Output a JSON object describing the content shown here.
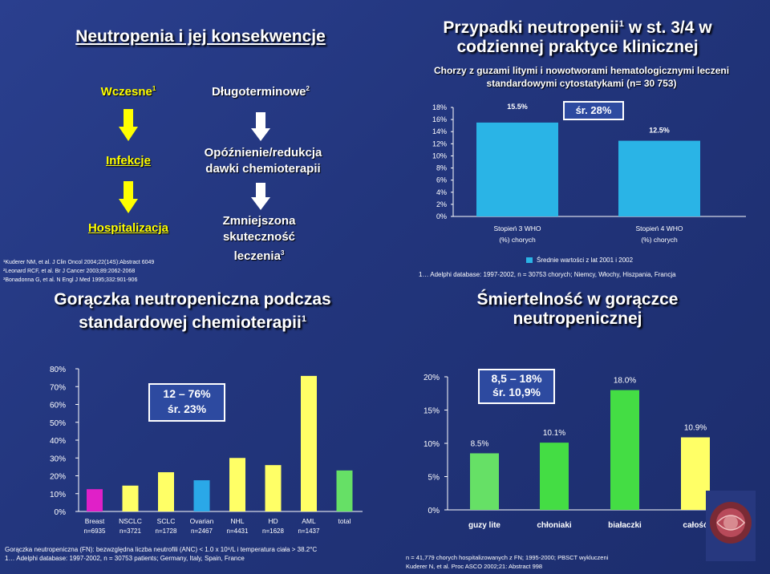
{
  "q1": {
    "title": "Neutropenia i jej konsekwencje",
    "early_label": "Wczesne",
    "early_sup": "1",
    "late_label": "Długoterminowe",
    "late_sup": "2",
    "early_steps": [
      "Infekcje",
      "Hospitalizacja"
    ],
    "late_steps": [
      "Opóźnienie/redukcja dawki chemioterapii",
      "Zmniejszona skuteczność leczenia"
    ],
    "late_steps_sup": "3",
    "refs": [
      "¹Kuderer NM, et al. J Clin Oncol 2004;22(14S):Abstract 6049",
      "²Leonard RCF, et al. Br J Cancer 2003;89:2062-2068",
      "³Bonadonna G, et al. N Engl J Med 1995;332:901-906"
    ]
  },
  "q2": {
    "title_line1": "Przypadki neutropenii",
    "title_sup": "1",
    "title_line1b": " w st. 3/4 w",
    "title_line2": "codziennej praktyce klinicznej",
    "subtitle_line1": "Chorzy z guzami litymi i nowotworami hematologicznymi leczeni",
    "subtitle_line2": "standardowymi cytostatykami (n= 30 753)",
    "avg_box": "śr. 28%",
    "legend": "Średnie wartości z lat  2001 i 2002",
    "footnote": "1… Adelphi database: 1997-2002, n = 30753 chorych; Niemcy, Włochy, Hiszpania, Francja"
  },
  "q3": {
    "title_line1": "Gorączka neutropeniczna podczas",
    "title_line2": "standardowej chemioterapii",
    "title_sup": "1",
    "box_line1": "12 – 76%",
    "box_line2": "śr. 23%",
    "footnote_line1": "Gorączka neutropeniczna (FN): bezwzględna liczba neutrofili (ANC) < 1.0 x 10⁹/L i  temperatura ciała  > 38.2°C",
    "footnote_line2": "1… Adelphi database: 1997-2002, n = 30753 patients; Germany, Italy, Spain, France"
  },
  "q4": {
    "title_line1": "Śmiertelność w gorączce",
    "title_line2": "neutropenicznej",
    "box_line1": "8,5 – 18%",
    "box_line2": "śr. 10,9%",
    "footnote_line1": "n = 41,779 chorych hospitalizowanych z  FN; 1995-2000; PBSCT wykluczeni",
    "footnote_line2": "Kuderer N, et al. Proc ASCO 2002;21: Abstract 998"
  },
  "colors": {
    "title": "#ffffff",
    "step_yellow": "#ffff00",
    "arrow_yellow": "#ffff00",
    "arrow_white": "#ffffff",
    "bar_blue": "#2ab4e6",
    "bar_magenta": "#e020c8",
    "bar_yellow": "#ffff66",
    "bar_green": "#66e066",
    "bar_cyan": "#2aa8e8",
    "mort_green": "#44dd44",
    "mort_yellow": "#ffff66"
  },
  "chart_data": [
    {
      "type": "bar",
      "title": "Chorzy z guzami litymi i nowotworami hematologicznymi leczeni standardowymi cytostatykami (n= 30 753)",
      "categories": [
        "Stopień 3 WHO (%) chorych",
        "Stopień 4 WHO (%) chorych"
      ],
      "values": [
        15.5,
        12.5
      ],
      "value_labels": [
        "15.5%",
        "12.5%"
      ],
      "ylim": [
        0,
        18
      ],
      "yticks": [
        "0%",
        "2%",
        "4%",
        "6%",
        "8%",
        "10%",
        "12%",
        "14%",
        "16%",
        "18%"
      ],
      "legend": "Średnie wartości z lat  2001 i 2002",
      "legend_position": "bottom",
      "grid": false
    },
    {
      "type": "bar",
      "title": "Gorączka neutropeniczna podczas standardowej chemioterapii",
      "categories": [
        "Breast",
        "NSCLC",
        "SCLC",
        "Ovarian",
        "NHL",
        "HD",
        "AML",
        "total"
      ],
      "category_sublabels": [
        "n=6935",
        "n=3721",
        "n=1728",
        "n=2467",
        "n=4431",
        "n=1628",
        "n=1437",
        ""
      ],
      "values": [
        12.5,
        14.5,
        22,
        17.5,
        30,
        26,
        76,
        23
      ],
      "ylim": [
        0,
        80
      ],
      "yticks": [
        "0%",
        "10%",
        "20%",
        "30%",
        "40%",
        "50%",
        "60%",
        "70%",
        "80%"
      ],
      "grid": false
    },
    {
      "type": "bar",
      "title": "Śmiertelność w gorączce neutropenicznej",
      "categories": [
        "guzy lite",
        "chłoniaki",
        "białaczki",
        "całość"
      ],
      "values": [
        8.5,
        10.1,
        18.0,
        10.9
      ],
      "value_labels": [
        "8.5%",
        "10.1%",
        "18.0%",
        "10.9%"
      ],
      "ylim": [
        0,
        20
      ],
      "yticks": [
        "0%",
        "5%",
        "10%",
        "15%",
        "20%"
      ],
      "grid": false
    }
  ]
}
